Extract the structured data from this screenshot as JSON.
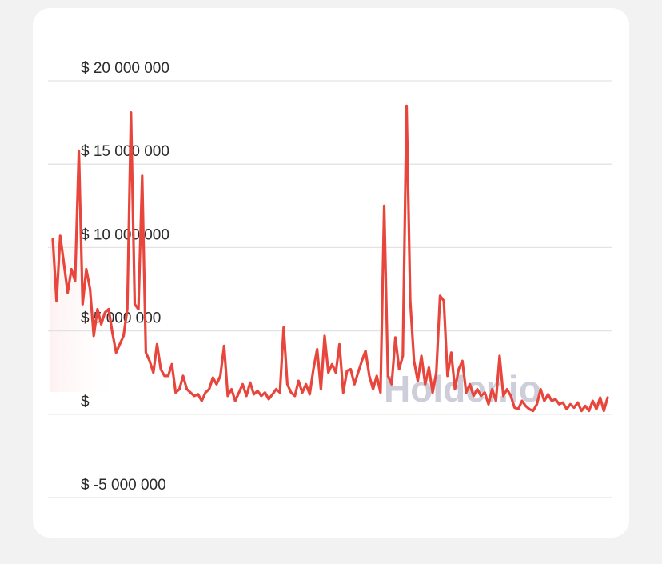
{
  "chart_data": {
    "type": "line",
    "watermark": "Holder.io",
    "ylim": [
      -5000000,
      20000000
    ],
    "yticks": [
      {
        "value": -5000000,
        "label": "$ -5 000 000"
      },
      {
        "value": 0,
        "label": "$"
      },
      {
        "value": 5000000,
        "label": "$ 5 000 000"
      },
      {
        "value": 10000000,
        "label": "$ 10 000 000"
      },
      {
        "value": 15000000,
        "label": "$ 15 000 000"
      },
      {
        "value": 20000000,
        "label": "$ 20 000 000"
      }
    ],
    "grid": true,
    "series": [
      {
        "color": "#e8453c",
        "values": [
          10500000,
          6800000,
          10700000,
          9000000,
          7300000,
          8700000,
          8000000,
          15800000,
          6600000,
          8700000,
          7500000,
          4700000,
          6300000,
          5400000,
          6100000,
          6300000,
          4900000,
          3700000,
          4200000,
          4700000,
          6300000,
          18100000,
          6600000,
          6300000,
          14300000,
          3700000,
          3200000,
          2500000,
          4200000,
          2700000,
          2300000,
          2300000,
          3000000,
          1300000,
          1500000,
          2300000,
          1500000,
          1300000,
          1100000,
          1200000,
          800000,
          1300000,
          1500000,
          2200000,
          1800000,
          2300000,
          4100000,
          1100000,
          1500000,
          800000,
          1300000,
          1800000,
          1100000,
          1900000,
          1200000,
          1400000,
          1100000,
          1300000,
          900000,
          1200000,
          1500000,
          1300000,
          5200000,
          1800000,
          1300000,
          1100000,
          2000000,
          1300000,
          1800000,
          1200000,
          2700000,
          3900000,
          1500000,
          4700000,
          2500000,
          3000000,
          2500000,
          4200000,
          1300000,
          2600000,
          2700000,
          1800000,
          2500000,
          3200000,
          3800000,
          2300000,
          1500000,
          2300000,
          1300000,
          12500000,
          2300000,
          1800000,
          4600000,
          2700000,
          3500000,
          18500000,
          6800000,
          3200000,
          2000000,
          3500000,
          1800000,
          2800000,
          1300000,
          2500000,
          7100000,
          6800000,
          2300000,
          3700000,
          1500000,
          2700000,
          3200000,
          1300000,
          1800000,
          1100000,
          1500000,
          1100000,
          1300000,
          600000,
          1500000,
          800000,
          3500000,
          1100000,
          1500000,
          1100000,
          400000,
          300000,
          800000,
          500000,
          300000,
          200000,
          600000,
          1500000,
          800000,
          1200000,
          800000,
          900000,
          600000,
          700000,
          300000,
          600000,
          400000,
          700000,
          200000,
          500000,
          200000,
          800000,
          300000,
          1000000,
          200000,
          1000000
        ]
      }
    ]
  }
}
